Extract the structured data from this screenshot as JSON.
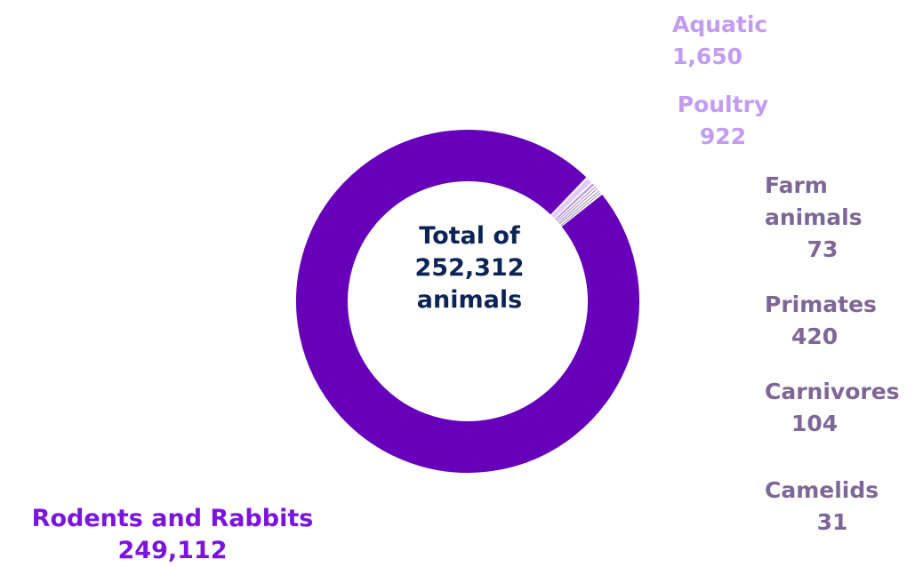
{
  "chart_data": {
    "type": "pie",
    "subtype": "donut",
    "center_text": [
      "Total of",
      "252,312",
      "animals"
    ],
    "slices": [
      {
        "label": "Rodents and Rabbits",
        "value": 249112,
        "value_label": "249,112",
        "color": "#6600bb"
      },
      {
        "label": "Aquatic",
        "value": 1650,
        "value_label": "1,650",
        "color": "#e2cbf9"
      },
      {
        "label": "Poultry",
        "value": 922,
        "value_label": "922",
        "color": "#b891ec"
      },
      {
        "label": "Farm animals",
        "value": 73,
        "value_label": "73",
        "color": "#8e7aa6"
      },
      {
        "label": "Primates",
        "value": 420,
        "value_label": "420",
        "color": "#8e7aa6"
      },
      {
        "label": "Carnivores",
        "value": 104,
        "value_label": "104",
        "color": "#8e7aa6"
      },
      {
        "label": "Camelids",
        "value": 31,
        "value_label": "31",
        "color": "#8e7aa6"
      }
    ],
    "legend": "none"
  },
  "labels": {
    "aquatic": {
      "name": "Aquatic",
      "value": "1,650"
    },
    "poultry": {
      "name": "Poultry",
      "value": "922"
    },
    "farm": {
      "name_line1": "Farm",
      "name_line2": "animals",
      "value": "73"
    },
    "primates": {
      "name": "Primates",
      "value": "420"
    },
    "carnivores": {
      "name": "Carnivores",
      "value": "104"
    },
    "camelids": {
      "name": "Camelids",
      "value": "31"
    },
    "rodents": {
      "name": "Rodents and Rabbits",
      "value": "249,112"
    }
  },
  "center": {
    "line1": "Total of",
    "line2": "252,312",
    "line3": "animals"
  }
}
